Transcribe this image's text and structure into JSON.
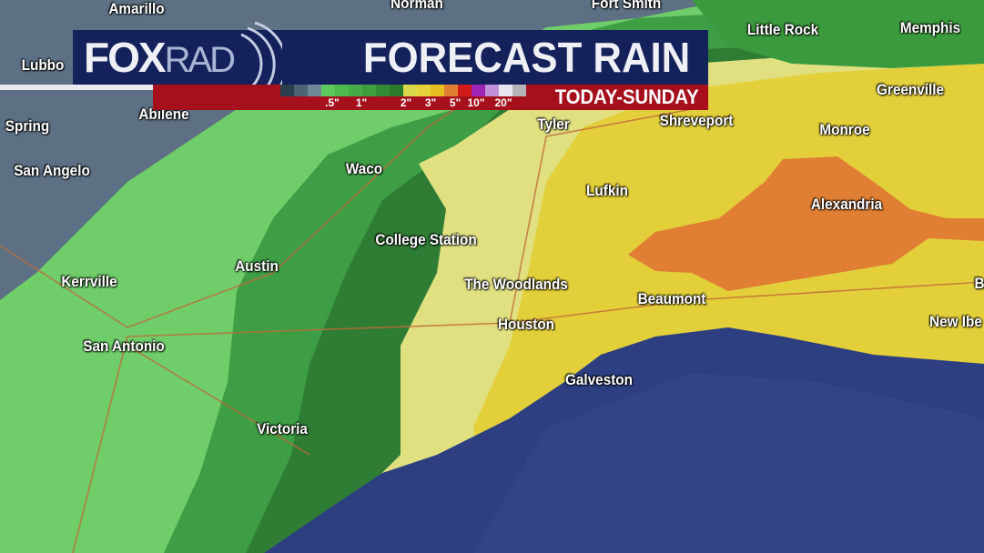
{
  "banner": {
    "logo_fox": "FOX",
    "logo_rad": "RAD",
    "title": "FORECAST RAIN",
    "period": "TODAY-SUNDAY",
    "legend": {
      "colors": [
        "#2c3f4c",
        "#4d6475",
        "#6f8898",
        "#5cc75c",
        "#4fb84f",
        "#46ab46",
        "#3e9e3e",
        "#338b33",
        "#2a7a2a",
        "#d8d84a",
        "#e5d23a",
        "#e6c020",
        "#e07f34",
        "#d21a1a",
        "#a024b4",
        "#c090d8",
        "#e6e6ee",
        "#b4b4b8"
      ],
      "labels": [
        ".5\"",
        "1\"",
        "2\"",
        "3\"",
        "5\"",
        "10\"",
        "20\""
      ]
    }
  },
  "cities": [
    "Amarillo",
    "Norman",
    "Fort Smith",
    "Little Rock",
    "Memphis",
    "Lubbo",
    "Abilene",
    "Spring",
    "San Angelo",
    "Tyler",
    "Shreveport",
    "Greenville",
    "Monroe",
    "Waco",
    "Lufkin",
    "Alexandria",
    "College Station",
    "Austin",
    "Kerrville",
    "The Woodlands",
    "Beaumont",
    "Houston",
    "New Ibe",
    "San Antonio",
    "Galveston",
    "Victoria",
    "B"
  ]
}
